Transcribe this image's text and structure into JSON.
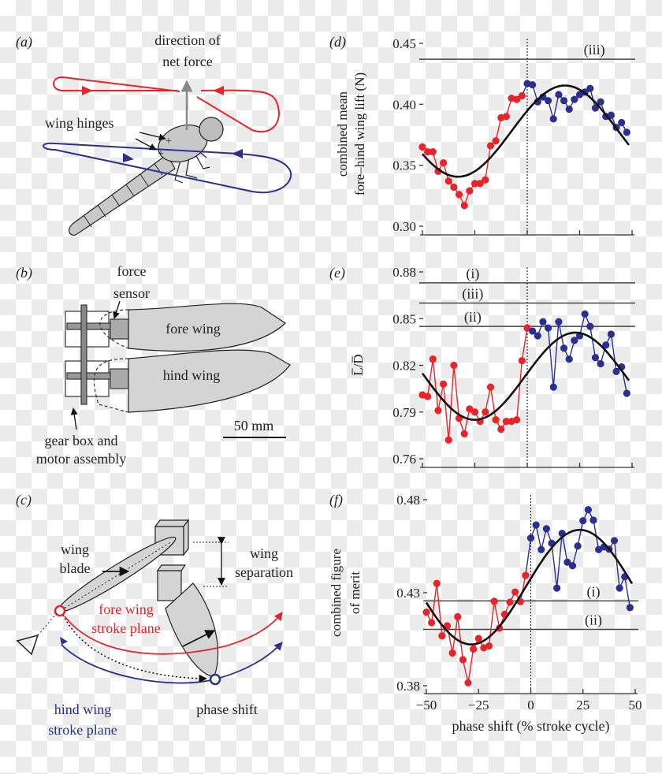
{
  "panels": {
    "a": {
      "label": "(a)",
      "direction_line1": "direction of",
      "direction_line2": "net force",
      "wing_hinges": "wing hinges"
    },
    "b": {
      "label": "(b)",
      "force_line1": "force",
      "force_line2": "sensor",
      "fore_wing": "fore wing",
      "hind_wing": "hind wing",
      "scale_bar": "50 mm",
      "gear_line1": "gear box and",
      "gear_line2": "motor assembly"
    },
    "c": {
      "label": "(c)",
      "blade_line1": "wing",
      "blade_line2": "blade",
      "sep_line1": "wing",
      "sep_line2": "separation",
      "fore_line1": "fore wing",
      "fore_line2": "stroke plane",
      "hind_line1": "hind wing",
      "hind_line2": "stroke plane",
      "phase_shift": "phase shift"
    },
    "d": {
      "label": "(d)"
    },
    "e": {
      "label": "(e)"
    },
    "f": {
      "label": "(f)"
    }
  },
  "colors": {
    "fore": "#e8232a",
    "hind": "#2b2f8f",
    "fit": "#111111",
    "reference": "#444444",
    "wing_fill": "#d4d4d4"
  },
  "chart_data": [
    {
      "type": "line",
      "ylabel_line1": "combined mean",
      "ylabel_line2": "fore–hind wing lift (N)",
      "xlabel": "",
      "xlim": [
        -50,
        50
      ],
      "ylim": [
        0.3,
        0.45
      ],
      "xticks": [
        -50,
        -25,
        0,
        25,
        50
      ],
      "xtick_labels": [],
      "yticks": [
        0.3,
        0.35,
        0.4,
        0.45
      ],
      "ytick_labels": [
        "0.30",
        "0.35",
        "0.40",
        "0.45"
      ],
      "vline_x": 0,
      "reference_lines": [
        {
          "label": "(iii)",
          "y": 0.437
        }
      ],
      "fit": {
        "type": "sinusoid",
        "mean": 0.378,
        "amplitude": 0.0374,
        "peak_x": 18,
        "period": 102
      },
      "series": [
        {
          "color": "#e8232a",
          "x": [
            -50,
            -47.5,
            -45,
            -42.5,
            -40,
            -37.5,
            -35,
            -32.5,
            -30,
            -27.5,
            -25,
            -22.5,
            -20,
            -17.5,
            -15,
            -12.5,
            -10,
            -7.5,
            -5,
            -2.5
          ],
          "y": [
            0.365,
            0.361,
            0.361,
            0.345,
            0.352,
            0.337,
            0.332,
            0.326,
            0.317,
            0.329,
            0.335,
            0.335,
            0.338,
            0.366,
            0.37,
            0.389,
            0.39,
            0.405,
            0.404,
            0.407
          ]
        },
        {
          "color": "#2b2f8f",
          "x": [
            0,
            2.5,
            5,
            7.5,
            10,
            12.5,
            15,
            17.5,
            20,
            22.5,
            25,
            27.5,
            30,
            32.5,
            35,
            37.5,
            40,
            42.5,
            45,
            47.5
          ],
          "y": [
            0.417,
            0.416,
            0.402,
            0.406,
            0.403,
            0.388,
            0.408,
            0.403,
            0.396,
            0.404,
            0.408,
            0.41,
            0.413,
            0.397,
            0.402,
            0.39,
            0.391,
            0.381,
            0.385,
            0.377
          ]
        }
      ]
    },
    {
      "type": "line",
      "ylabel_line1": "L̅/D̅",
      "ylabel_line2": "",
      "xlabel": "",
      "xlim": [
        -50,
        50
      ],
      "ylim": [
        0.76,
        0.88
      ],
      "xticks": [
        -50,
        -25,
        0,
        25,
        50
      ],
      "xtick_labels": [],
      "yticks": [
        0.76,
        0.79,
        0.82,
        0.85,
        0.88
      ],
      "ytick_labels": [
        "0.76",
        "0.79",
        "0.82",
        "0.85",
        "0.88"
      ],
      "vline_x": 0,
      "reference_lines": [
        {
          "label": "(i)",
          "y": 0.873
        },
        {
          "label": "(iii)",
          "y": 0.86
        },
        {
          "label": "(ii)",
          "y": 0.845
        }
      ],
      "fit": {
        "type": "sinusoid",
        "mean": 0.813,
        "amplitude": 0.028,
        "peak_x": 23,
        "period": 96
      },
      "series": [
        {
          "color": "#e8232a",
          "x": [
            -50,
            -47.5,
            -45,
            -42.5,
            -40,
            -37.5,
            -35,
            -32.5,
            -30,
            -27.5,
            -25,
            -22.5,
            -20,
            -17.5,
            -15,
            -12.5,
            -10,
            -7.5,
            -5,
            -2.5,
            0
          ],
          "y": [
            0.801,
            0.8,
            0.824,
            0.791,
            0.808,
            0.772,
            0.82,
            0.786,
            0.776,
            0.792,
            0.79,
            0.784,
            0.79,
            0.806,
            0.785,
            0.779,
            0.784,
            0.784,
            0.785,
            0.823,
            0.844
          ]
        },
        {
          "color": "#2b2f8f",
          "x": [
            2.5,
            5,
            7.5,
            10,
            12.5,
            15,
            17.5,
            20,
            22.5,
            25,
            27.5,
            30,
            32.5,
            35,
            37.5,
            40,
            42.5,
            45,
            47.5
          ],
          "y": [
            0.842,
            0.839,
            0.848,
            0.844,
            0.806,
            0.848,
            0.831,
            0.824,
            0.836,
            0.839,
            0.853,
            0.845,
            0.825,
            0.821,
            0.833,
            0.84,
            0.816,
            0.819,
            0.802
          ]
        }
      ]
    },
    {
      "type": "line",
      "ylabel_line1": "combined figure",
      "ylabel_line2": "of merit",
      "xlabel": "phase shift (% stroke cycle)",
      "xlim": [
        -50,
        50
      ],
      "ylim": [
        0.38,
        0.48
      ],
      "xticks": [
        -50,
        -25,
        0,
        25,
        50
      ],
      "xtick_labels": [
        "−50",
        "−25",
        "0",
        "25",
        "50"
      ],
      "yticks": [
        0.38,
        0.43,
        0.48
      ],
      "ytick_labels": [
        "0.38",
        "0.43",
        "0.48"
      ],
      "vline_x": 0,
      "reference_lines": [
        {
          "label": "(i)",
          "y": 0.4256
        },
        {
          "label": "(ii)",
          "y": 0.4103
        }
      ],
      "fit": {
        "type": "sinusoid",
        "mean": 0.433,
        "amplitude": 0.0308,
        "peak_x": 23.5,
        "period": 104
      },
      "series": [
        {
          "color": "#e8232a",
          "x": [
            -50,
            -47.5,
            -45,
            -42.5,
            -40,
            -37.5,
            -35,
            -32.5,
            -30,
            -27.5,
            -25,
            -22.5,
            -20,
            -17.5,
            -15,
            -12.5,
            -10,
            -7.5,
            -5,
            -2.5
          ],
          "y": [
            0.4195,
            0.4139,
            0.435,
            0.4068,
            0.4122,
            0.3976,
            0.4171,
            0.394,
            0.3816,
            0.3997,
            0.4054,
            0.4004,
            0.4014,
            0.4254,
            0.411,
            0.4184,
            0.4249,
            0.4304,
            0.4252,
            0.4393
          ]
        },
        {
          "color": "#2b2f8f",
          "x": [
            0,
            2.5,
            5,
            7.5,
            10,
            12.5,
            15,
            17.5,
            20,
            22.5,
            25,
            27.5,
            30,
            32.5,
            35,
            37.5,
            40,
            42.5,
            45,
            47.5
          ],
          "y": [
            0.4594,
            0.4664,
            0.4532,
            0.4644,
            0.4566,
            0.4325,
            0.4619,
            0.4464,
            0.4445,
            0.4551,
            0.4687,
            0.4746,
            0.469,
            0.4532,
            0.4546,
            0.4534,
            0.458,
            0.4325,
            0.4386,
            0.422
          ]
        }
      ]
    }
  ]
}
